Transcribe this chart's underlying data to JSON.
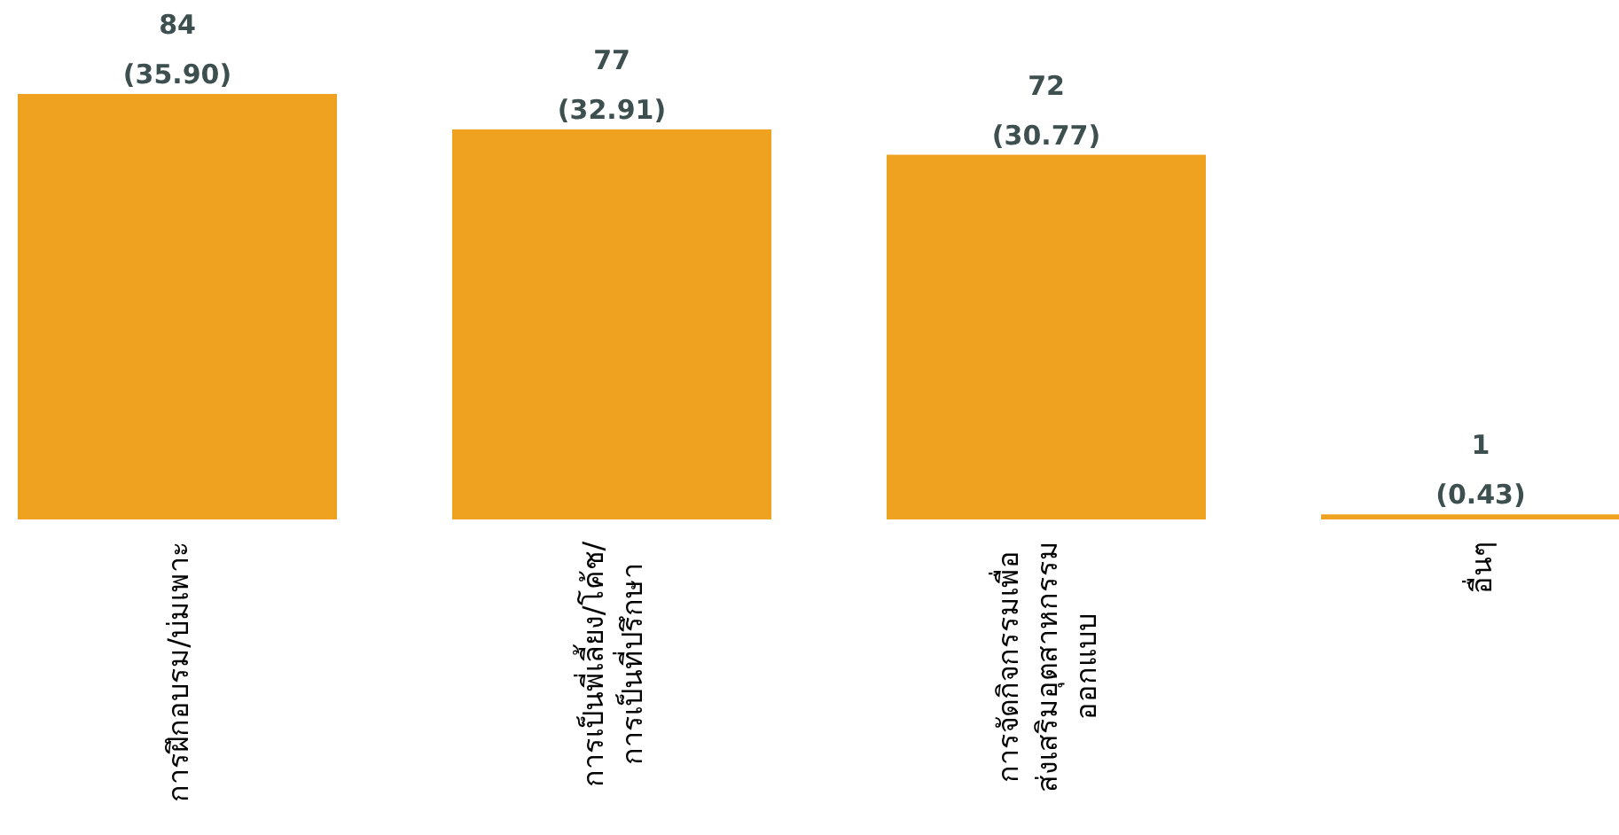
{
  "chart_data": {
    "type": "bar",
    "categories": [
      "การฝึกอบรม/บ่มเพาะ",
      "การเป็นพี่เลี้ยง/โค้ช/\nการเป็นที่ปรึกษา",
      "การจัดกิจกรรมเพื่อ\nส่งเสริมอุตสาหกรรม\nออกแบบ",
      "อื่นๆ"
    ],
    "values": [
      84,
      77,
      72,
      1
    ],
    "value_labels": [
      "84\n(35.90)",
      "77\n(32.91)",
      "72\n(30.77)",
      "1\n(0.43)"
    ],
    "color": "#eea21f"
  }
}
